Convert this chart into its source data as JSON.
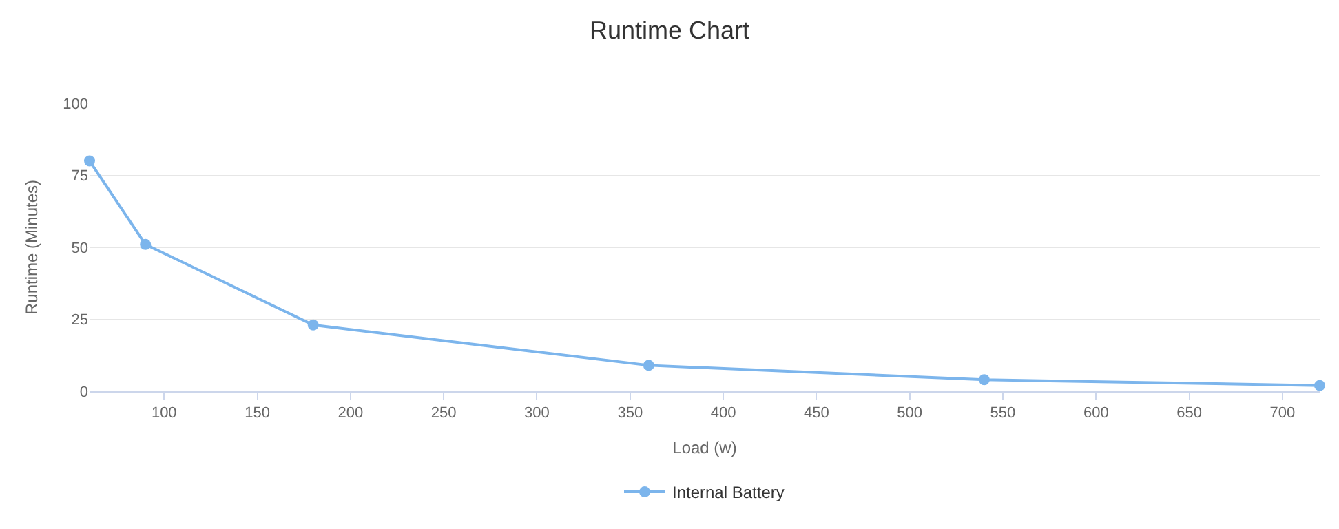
{
  "chart_data": {
    "type": "line",
    "title": "Runtime Chart",
    "xlabel": "Load (w)",
    "ylabel": "Runtime (Minutes)",
    "x": [
      60,
      90,
      180,
      360,
      540,
      720
    ],
    "series": [
      {
        "name": "Internal Battery",
        "color": "#7cb5ec",
        "values": [
          80,
          51,
          23,
          9,
          4,
          2
        ]
      }
    ],
    "xlim": [
      60,
      720
    ],
    "xticks": [
      100,
      150,
      200,
      250,
      300,
      350,
      400,
      450,
      500,
      550,
      600,
      650,
      700
    ],
    "ylim": [
      0,
      100
    ],
    "yticks": [
      0,
      25,
      50,
      75,
      100
    ],
    "grid": "y",
    "legend": "bottom",
    "marker": "circle",
    "line_style": "solid"
  }
}
